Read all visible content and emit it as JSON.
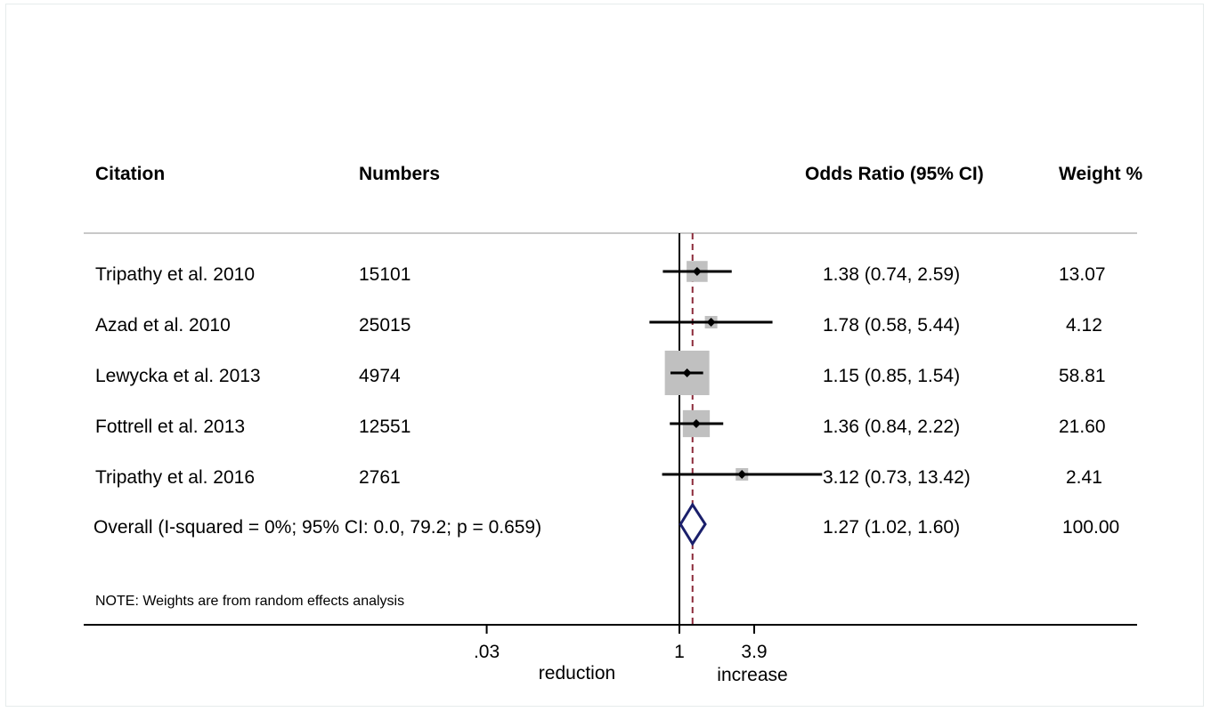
{
  "chart_data": {
    "type": "forest",
    "headers": {
      "citation": "Citation",
      "numbers": "Numbers",
      "or": "Odds Ratio (95% CI)",
      "weight": "Weight %"
    },
    "studies": [
      {
        "citation": "Tripathy et al. 2010",
        "numbers": "15101",
        "or": 1.38,
        "lo": 0.74,
        "hi": 2.59,
        "or_text": "1.38 (0.74, 2.59)",
        "weight": 13.07,
        "weight_text": "13.07"
      },
      {
        "citation": "Azad et al. 2010",
        "numbers": "25015",
        "or": 1.78,
        "lo": 0.58,
        "hi": 5.44,
        "or_text": "1.78 (0.58, 5.44)",
        "weight": 4.12,
        "weight_text": "4.12"
      },
      {
        "citation": "Lewycka et al. 2013",
        "numbers": "4974",
        "or": 1.15,
        "lo": 0.85,
        "hi": 1.54,
        "or_text": "1.15 (0.85, 1.54)",
        "weight": 58.81,
        "weight_text": "58.81"
      },
      {
        "citation": "Fottrell et al. 2013",
        "numbers": "12551",
        "or": 1.36,
        "lo": 0.84,
        "hi": 2.22,
        "or_text": "1.36 (0.84, 2.22)",
        "weight": 21.6,
        "weight_text": "21.60"
      },
      {
        "citation": "Tripathy et al. 2016",
        "numbers": "2761",
        "or": 3.12,
        "lo": 0.73,
        "hi": 13.42,
        "or_text": "3.12 (0.73, 13.42)",
        "weight": 2.41,
        "weight_text": "2.41"
      }
    ],
    "overall": {
      "label": "Overall  (I-squared = 0%; 95% CI: 0.0, 79.2;  p = 0.659)",
      "or": 1.27,
      "lo": 1.02,
      "hi": 1.6,
      "or_text": "1.27 (1.02, 1.60)",
      "weight_text": "100.00"
    },
    "note": "NOTE: Weights are from random effects analysis",
    "x_scale": "log",
    "x_ticks": [
      {
        "value": 0.03,
        "label": ".03"
      },
      {
        "value": 1,
        "label": "1"
      },
      {
        "value": 3.9,
        "label": "3.9"
      }
    ],
    "x_labels": {
      "left": "reduction",
      "right": "increase"
    },
    "null_line": 1,
    "colors": {
      "box": "#c0c0c0",
      "diamond": "#1a1f6b",
      "overall_line": "#8b2a3a",
      "rule": "#c8c8c8"
    }
  }
}
